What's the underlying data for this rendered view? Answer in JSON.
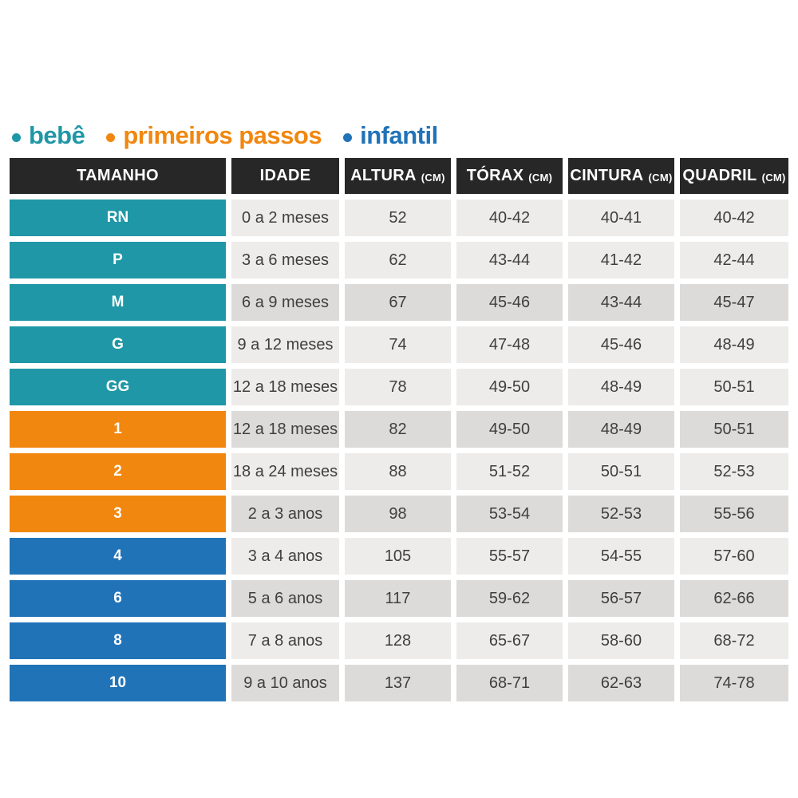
{
  "legend": {
    "items": [
      {
        "key": "bebe",
        "label": "bebê",
        "color": "#1f97a6"
      },
      {
        "key": "primeiros-passos",
        "label": "primeiros passos",
        "color": "#f1870f"
      },
      {
        "key": "infantil",
        "label": "infantil",
        "color": "#2173b8"
      }
    ]
  },
  "chart_data": {
    "type": "table",
    "columns": [
      {
        "key": "tamanho",
        "label": "TAMANHO",
        "unit": ""
      },
      {
        "key": "idade",
        "label": "IDADE",
        "unit": ""
      },
      {
        "key": "altura",
        "label": "ALTURA",
        "unit": "(CM)"
      },
      {
        "key": "torax",
        "label": "TÓRAX",
        "unit": "(CM)"
      },
      {
        "key": "cintura",
        "label": "CINTURA",
        "unit": "(CM)"
      },
      {
        "key": "quadril",
        "label": "QUADRIL",
        "unit": "(CM)"
      }
    ],
    "rows": [
      {
        "size": "RN",
        "group": "bebe",
        "shade": "light",
        "idade": "0 a 2 meses",
        "altura": "52",
        "torax": "40-42",
        "cintura": "40-41",
        "quadril": "40-42"
      },
      {
        "size": "P",
        "group": "bebe",
        "shade": "light",
        "idade": "3 a 6 meses",
        "altura": "62",
        "torax": "43-44",
        "cintura": "41-42",
        "quadril": "42-44"
      },
      {
        "size": "M",
        "group": "bebe",
        "shade": "dark",
        "idade": "6 a 9 meses",
        "altura": "67",
        "torax": "45-46",
        "cintura": "43-44",
        "quadril": "45-47"
      },
      {
        "size": "G",
        "group": "bebe",
        "shade": "light",
        "idade": "9 a 12 meses",
        "altura": "74",
        "torax": "47-48",
        "cintura": "45-46",
        "quadril": "48-49"
      },
      {
        "size": "GG",
        "group": "bebe",
        "shade": "light",
        "idade": "12 a 18 meses",
        "altura": "78",
        "torax": "49-50",
        "cintura": "48-49",
        "quadril": "50-51"
      },
      {
        "size": "1",
        "group": "primeiros-passos",
        "shade": "dark",
        "idade": "12 a 18 meses",
        "altura": "82",
        "torax": "49-50",
        "cintura": "48-49",
        "quadril": "50-51"
      },
      {
        "size": "2",
        "group": "primeiros-passos",
        "shade": "light",
        "idade": "18 a 24 meses",
        "altura": "88",
        "torax": "51-52",
        "cintura": "50-51",
        "quadril": "52-53"
      },
      {
        "size": "3",
        "group": "primeiros-passos",
        "shade": "dark",
        "idade": "2 a 3 anos",
        "altura": "98",
        "torax": "53-54",
        "cintura": "52-53",
        "quadril": "55-56"
      },
      {
        "size": "4",
        "group": "infantil",
        "shade": "light",
        "idade": "3 a 4 anos",
        "altura": "105",
        "torax": "55-57",
        "cintura": "54-55",
        "quadril": "57-60"
      },
      {
        "size": "6",
        "group": "infantil",
        "shade": "dark",
        "idade": "5 a 6 anos",
        "altura": "117",
        "torax": "59-62",
        "cintura": "56-57",
        "quadril": "62-66"
      },
      {
        "size": "8",
        "group": "infantil",
        "shade": "light",
        "idade": "7 a 8 anos",
        "altura": "128",
        "torax": "65-67",
        "cintura": "58-60",
        "quadril": "68-72"
      },
      {
        "size": "10",
        "group": "infantil",
        "shade": "dark",
        "idade": "9 a 10 anos",
        "altura": "137",
        "torax": "68-71",
        "cintura": "62-63",
        "quadril": "74-78"
      }
    ]
  },
  "colors": {
    "bebe": "#1f97a6",
    "primeiros-passos": "#f1870f",
    "infantil": "#2173b8",
    "header_bg": "#272727",
    "row_light": "#edecea",
    "row_dark": "#dcdbd9"
  }
}
